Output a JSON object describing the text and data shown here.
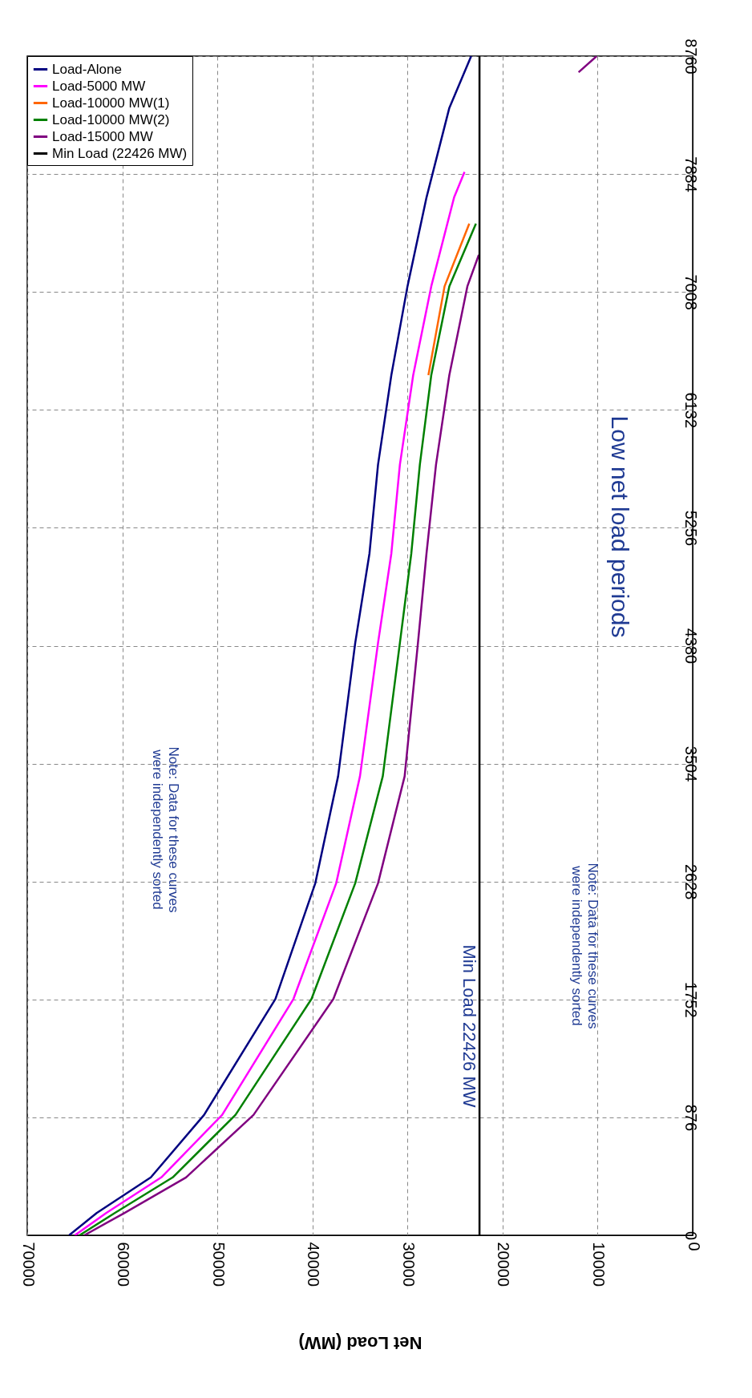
{
  "chart_data": {
    "type": "line",
    "xlabel": "Net Load (MW)",
    "xlim": [
      70000,
      0
    ],
    "xticks": [
      70000,
      60000,
      50000,
      40000,
      30000,
      20000,
      10000,
      0
    ],
    "ylim": [
      0,
      8760
    ],
    "yticks": [
      0,
      876,
      1752,
      2628,
      3504,
      4380,
      5256,
      6132,
      7008,
      7884,
      8760
    ],
    "grid": true,
    "legend": "top left",
    "line_style": "solid",
    "marker": "none",
    "series": [
      {
        "name": "Load-Alone",
        "color": "#000080",
        "x": [
          65600,
          62700,
          57000,
          51400,
          43900,
          39700,
          37300,
          35500,
          34000,
          33100,
          31700,
          30000,
          28000,
          25600,
          23300
        ],
        "values": [
          0,
          165,
          430,
          894,
          1755,
          2615,
          3410,
          4400,
          5065,
          5725,
          6390,
          7050,
          7710,
          8375,
          8760
        ]
      },
      {
        "name": "Load-5000 MW",
        "color": "#ff00ff",
        "x": [
          65000,
          61700,
          55900,
          49500,
          42000,
          37500,
          35000,
          33100,
          31700,
          30800,
          29400,
          27500,
          25100,
          24000
        ],
        "values": [
          0,
          165,
          430,
          894,
          1755,
          2615,
          3410,
          4400,
          5065,
          5725,
          6390,
          7050,
          7710,
          7900
        ]
      },
      {
        "name": "Load-10000 MW(1)",
        "color": "#ff6600",
        "x": [
          null,
          null,
          null,
          null,
          null,
          null,
          null,
          null,
          null,
          null,
          27800,
          26100,
          23500
        ],
        "values": [
          null,
          null,
          null,
          null,
          null,
          null,
          null,
          null,
          null,
          null,
          6390,
          7050,
          7515
        ]
      },
      {
        "name": "Load-10000 MW(2)",
        "color": "#008000",
        "x": [
          64500,
          60800,
          54700,
          48100,
          40100,
          35500,
          32600,
          30800,
          29600,
          28700,
          27500,
          25600,
          22800
        ],
        "values": [
          0,
          165,
          430,
          894,
          1755,
          2615,
          3410,
          4400,
          5065,
          5725,
          6390,
          7050,
          7515
        ]
      },
      {
        "name": "Load-15000 MW",
        "color": "#800080",
        "x": [
          64000,
          59800,
          53300,
          46200,
          37800,
          33100,
          30300,
          28900,
          28000,
          27000,
          25600,
          23700,
          22500,
          null,
          12000,
          10100
        ],
        "values": [
          0,
          165,
          430,
          894,
          1755,
          2615,
          3410,
          4400,
          5065,
          5725,
          6390,
          7050,
          7283,
          null,
          8640,
          8760
        ]
      },
      {
        "name": "Min Load (22426 MW)",
        "color": "#000000",
        "x": [
          22426,
          22426
        ],
        "values": [
          0,
          8760
        ]
      }
    ],
    "annotations": [
      "Note: Data for these curves\nwere independently sorted",
      "Min Load 22426 MW",
      "Note: Data for these curves\nwere independently sorted",
      "Low net load periods"
    ]
  }
}
